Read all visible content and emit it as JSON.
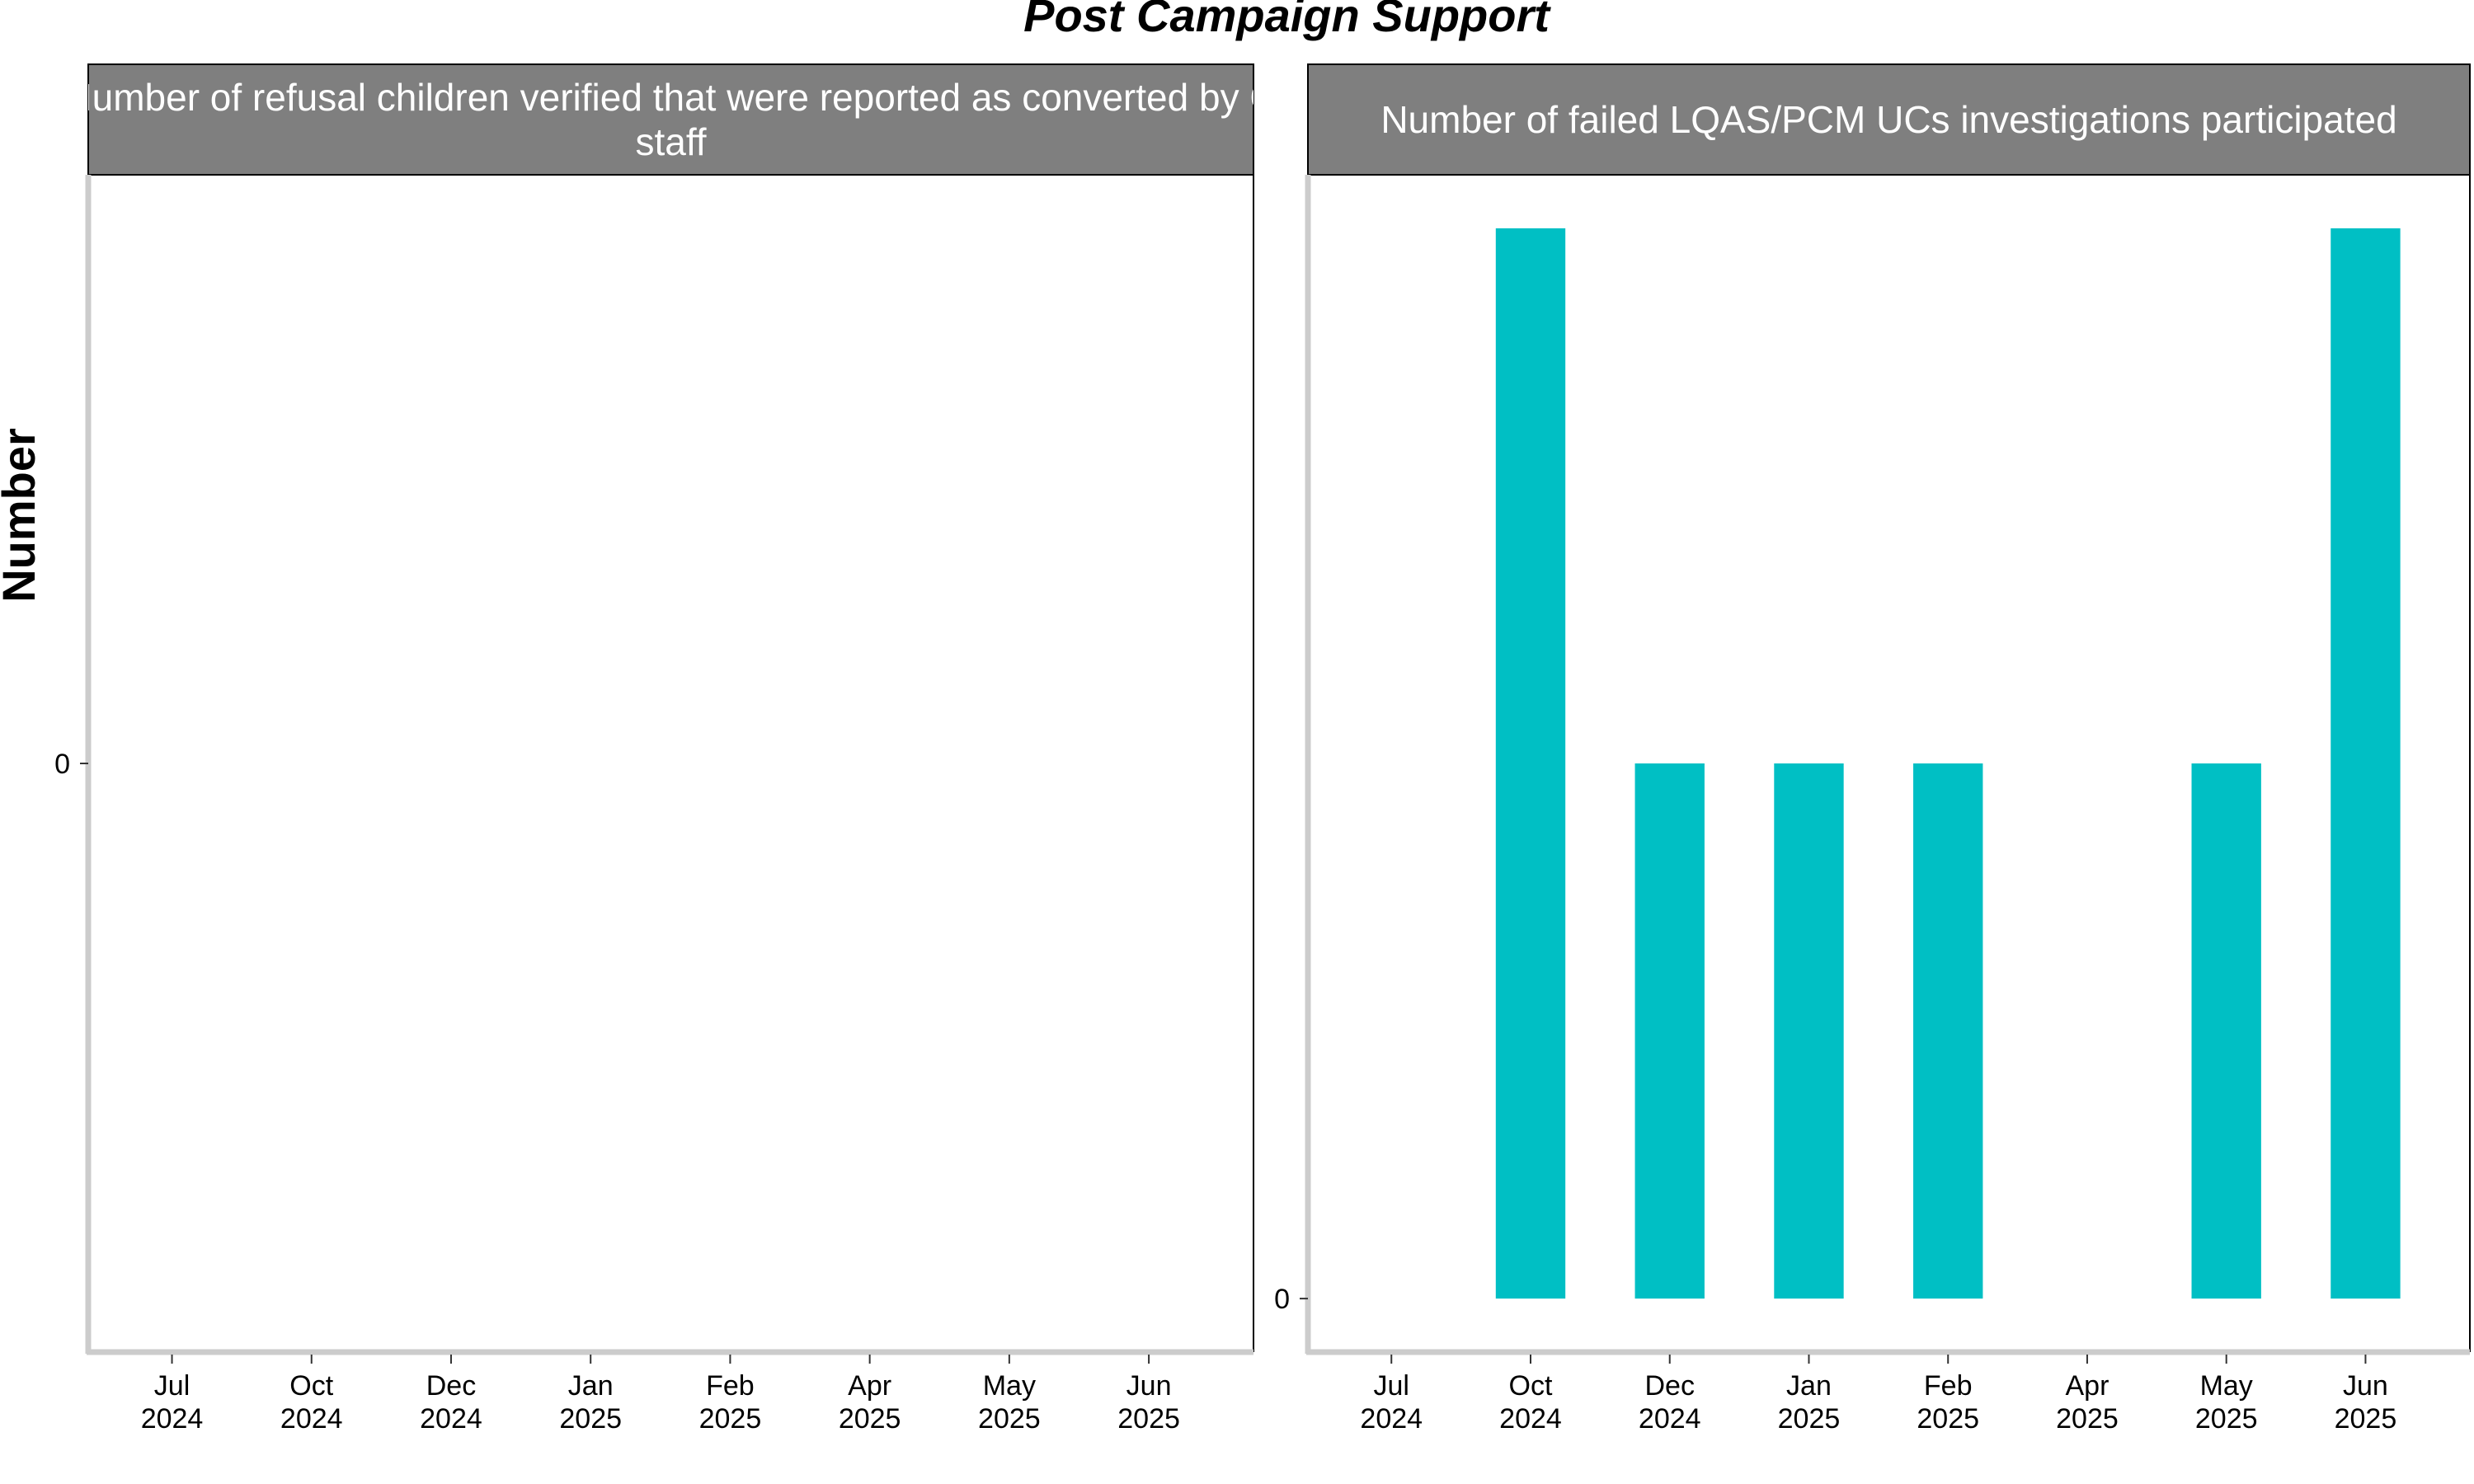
{
  "title": "Post Campaign Support",
  "ylabel": "Number",
  "colors": {
    "bar": "#00BFC4",
    "strip_fill": "#7F7F7F",
    "axis": "#CCCCCC",
    "panel_border": "#000000"
  },
  "chart_data": [
    {
      "type": "bar",
      "panel_title_lines": [
        "Number of refusal children verified that were reported as converted by C",
        "staff"
      ],
      "categories": [
        "Jul\n2024",
        "Oct\n2024",
        "Dec\n2024",
        "Jan\n2025",
        "Feb\n2025",
        "Apr\n2025",
        "May\n2025",
        "Jun\n2025"
      ],
      "values": [
        null,
        null,
        null,
        null,
        null,
        null,
        null,
        null
      ],
      "y_ticks": [
        0
      ],
      "ylim": [
        -1.1,
        1.1
      ]
    },
    {
      "type": "bar",
      "panel_title_lines": [
        "Number of failed LQAS/PCM UCs investigations participated"
      ],
      "categories": [
        "Jul\n2024",
        "Oct\n2024",
        "Dec\n2024",
        "Jan\n2025",
        "Feb\n2025",
        "Apr\n2025",
        "May\n2025",
        "Jun\n2025"
      ],
      "values": [
        null,
        2,
        1,
        1,
        1,
        null,
        1,
        2
      ],
      "y_ticks": [
        0
      ],
      "ylim": [
        -0.1,
        2.1
      ]
    }
  ]
}
